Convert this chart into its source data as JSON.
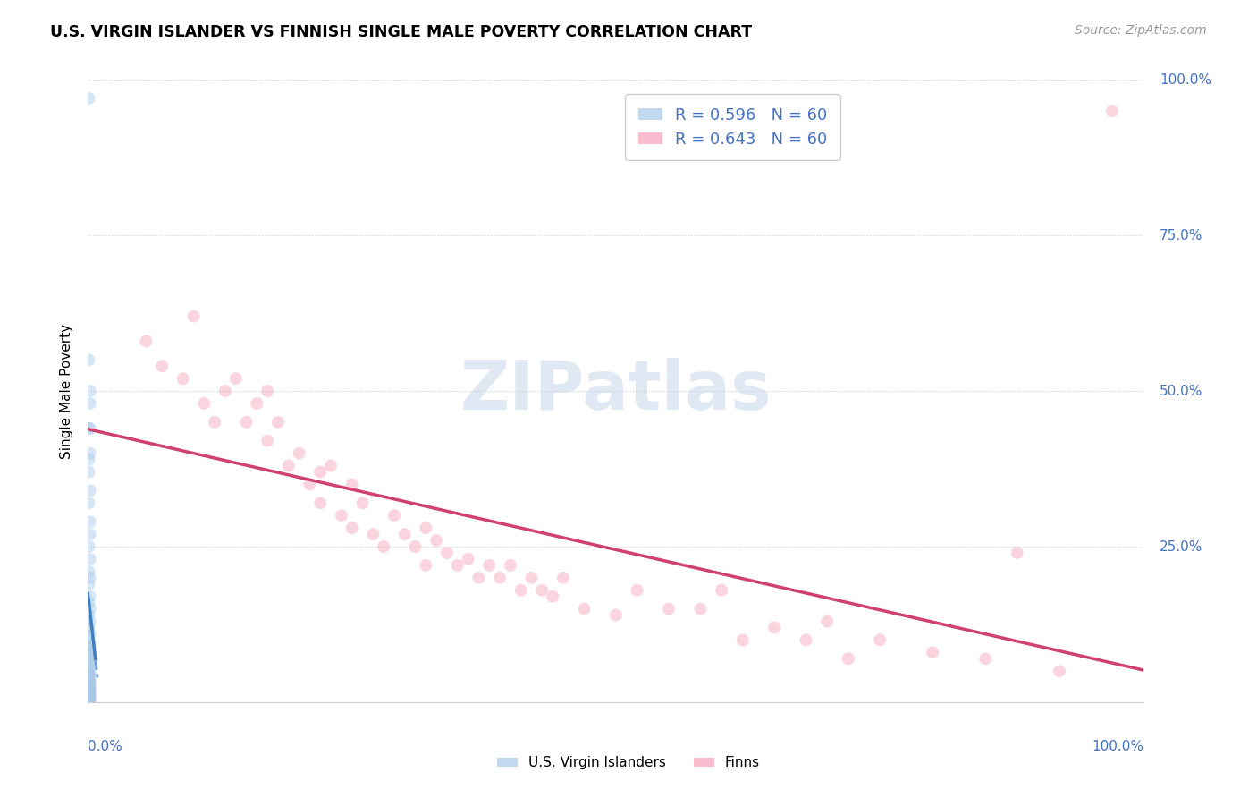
{
  "title": "U.S. VIRGIN ISLANDER VS FINNISH SINGLE MALE POVERTY CORRELATION CHART",
  "source": "Source: ZipAtlas.com",
  "ylabel": "Single Male Poverty",
  "legend_label1": "U.S. Virgin Islanders",
  "legend_label2": "Finns",
  "R1": 0.596,
  "N1": 60,
  "R2": 0.643,
  "N2": 60,
  "watermark": "ZIPatlas",
  "blue_color": "#a8c8e8",
  "pink_color": "#f4a0b8",
  "blue_line_color": "#4080c0",
  "pink_line_color": "#d04070",
  "vi_points_x": [
    0.001,
    0.002,
    0.001,
    0.002,
    0.001,
    0.002,
    0.001,
    0.002,
    0.002,
    0.001,
    0.002,
    0.001,
    0.002,
    0.001,
    0.002,
    0.001,
    0.002,
    0.001,
    0.002,
    0.001,
    0.002,
    0.001,
    0.002,
    0.001,
    0.002,
    0.001,
    0.002,
    0.001,
    0.002,
    0.001,
    0.002,
    0.001,
    0.002,
    0.001,
    0.002,
    0.001,
    0.002,
    0.001,
    0.002,
    0.001,
    0.002,
    0.001,
    0.002,
    0.001,
    0.002,
    0.001,
    0.002,
    0.001,
    0.002,
    0.001,
    0.002,
    0.001,
    0.002,
    0.001,
    0.002,
    0.001,
    0.002,
    0.001,
    0.002,
    0.001
  ],
  "vi_points_y": [
    0.97,
    0.48,
    0.44,
    0.4,
    0.37,
    0.34,
    0.32,
    0.29,
    0.27,
    0.25,
    0.23,
    0.21,
    0.2,
    0.19,
    0.17,
    0.16,
    0.15,
    0.14,
    0.13,
    0.12,
    0.11,
    0.1,
    0.095,
    0.09,
    0.085,
    0.08,
    0.075,
    0.07,
    0.065,
    0.06,
    0.055,
    0.05,
    0.047,
    0.044,
    0.041,
    0.038,
    0.035,
    0.032,
    0.03,
    0.028,
    0.026,
    0.024,
    0.022,
    0.02,
    0.018,
    0.016,
    0.014,
    0.012,
    0.01,
    0.008,
    0.006,
    0.005,
    0.004,
    0.003,
    0.002,
    0.001,
    0.44,
    0.39,
    0.5,
    0.55
  ],
  "finn_points_x": [
    0.055,
    0.07,
    0.09,
    0.1,
    0.11,
    0.12,
    0.13,
    0.14,
    0.15,
    0.16,
    0.17,
    0.17,
    0.18,
    0.19,
    0.2,
    0.21,
    0.22,
    0.22,
    0.23,
    0.24,
    0.25,
    0.25,
    0.26,
    0.27,
    0.28,
    0.29,
    0.3,
    0.31,
    0.32,
    0.32,
    0.33,
    0.34,
    0.35,
    0.36,
    0.37,
    0.38,
    0.39,
    0.4,
    0.41,
    0.42,
    0.43,
    0.44,
    0.45,
    0.47,
    0.5,
    0.52,
    0.55,
    0.58,
    0.6,
    0.62,
    0.65,
    0.68,
    0.7,
    0.72,
    0.75,
    0.8,
    0.85,
    0.88,
    0.92,
    0.97
  ],
  "finn_points_y": [
    0.58,
    0.54,
    0.52,
    0.62,
    0.48,
    0.45,
    0.5,
    0.52,
    0.45,
    0.48,
    0.42,
    0.5,
    0.45,
    0.38,
    0.4,
    0.35,
    0.37,
    0.32,
    0.38,
    0.3,
    0.35,
    0.28,
    0.32,
    0.27,
    0.25,
    0.3,
    0.27,
    0.25,
    0.28,
    0.22,
    0.26,
    0.24,
    0.22,
    0.23,
    0.2,
    0.22,
    0.2,
    0.22,
    0.18,
    0.2,
    0.18,
    0.17,
    0.2,
    0.15,
    0.14,
    0.18,
    0.15,
    0.15,
    0.18,
    0.1,
    0.12,
    0.1,
    0.13,
    0.07,
    0.1,
    0.08,
    0.07,
    0.24,
    0.05,
    0.95
  ],
  "xlim": [
    0.0,
    1.0
  ],
  "ylim": [
    0.0,
    1.0
  ],
  "grid_color": "#cccccc",
  "yticks": [
    0.0,
    0.25,
    0.5,
    0.75,
    1.0
  ],
  "ytick_labels": [
    "",
    "25.0%",
    "50.0%",
    "75.0%",
    "100.0%"
  ],
  "label_color": "#4472c4",
  "background_color": "#ffffff",
  "marker_size": 100,
  "marker_alpha": 0.45
}
